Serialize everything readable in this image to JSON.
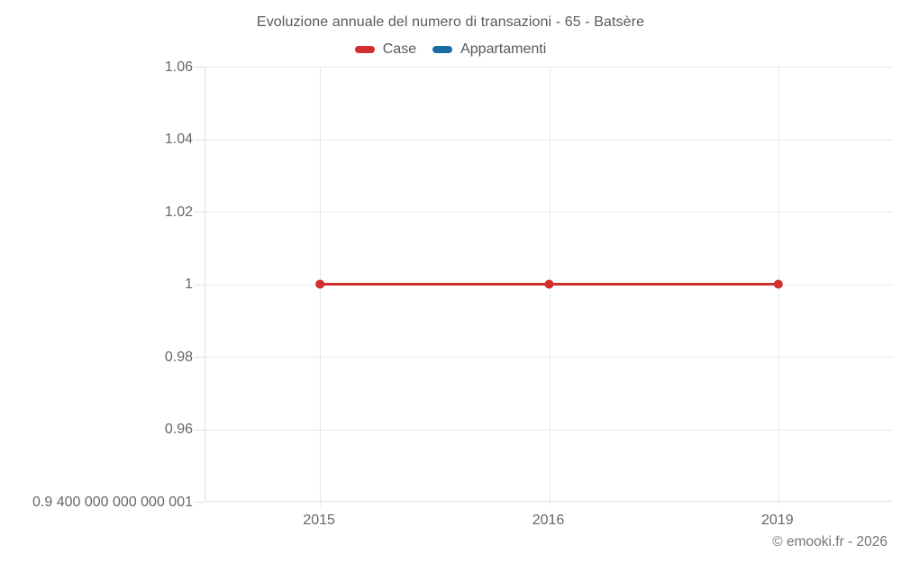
{
  "header": {
    "title": "Evoluzione annuale del numero di transazioni - 65 - Batsère"
  },
  "footer": {
    "copyright": "© emooki.fr - 2026"
  },
  "colors": {
    "case_red": "#d32f2f",
    "appartamenti_blue": "#1a6da3",
    "gridline": "#e9e9e9",
    "axis_line": "#e0e0e0",
    "tick_text": "#666666",
    "title_text": "#58595b",
    "background": "#ffffff"
  },
  "chart_data": {
    "type": "line",
    "title": "Evoluzione annuale del numero di transazioni - 65 - Batsère",
    "xlabel": "",
    "ylabel": "",
    "categories": [
      "2015",
      "2016",
      "2019"
    ],
    "series": [
      {
        "name": "Case",
        "color": "#d32f2f",
        "values": [
          1,
          1,
          1
        ]
      },
      {
        "name": "Appartamenti",
        "color": "#1a6da3",
        "values": [
          null,
          null,
          null
        ]
      }
    ],
    "legend": [
      {
        "label": "Case",
        "color": "#d32f2f"
      },
      {
        "label": "Appartamenti",
        "color": "#1a6da3"
      }
    ],
    "legend_position": "top",
    "grid": true,
    "ylim": [
      0.94,
      1.06
    ],
    "y_ticks": [
      {
        "value": 1.06,
        "label": "1.06"
      },
      {
        "value": 1.04,
        "label": "1.04"
      },
      {
        "value": 1.02,
        "label": "1.02"
      },
      {
        "value": 1.0,
        "label": "1"
      },
      {
        "value": 0.98,
        "label": "0.98"
      },
      {
        "value": 0.96,
        "label": "0.96"
      },
      {
        "value": 0.94,
        "label": "0.9 400 000 000 000 001"
      }
    ]
  }
}
